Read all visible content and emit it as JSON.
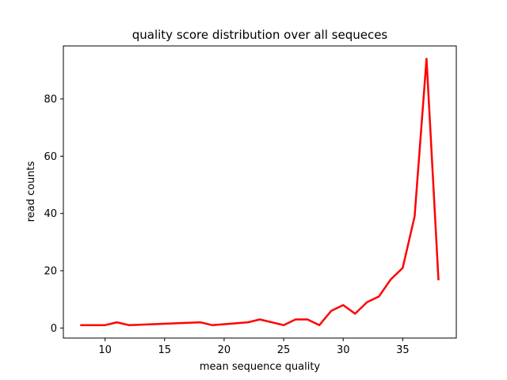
{
  "chart_data": {
    "type": "line",
    "title": "quality score distribution over all sequeces",
    "xlabel": "mean sequence quality",
    "ylabel": "read counts",
    "xlim": [
      6.5,
      39.5
    ],
    "ylim": [
      -3.5,
      98.5
    ],
    "xticks": [
      10,
      15,
      20,
      25,
      30,
      35
    ],
    "yticks": [
      0,
      20,
      40,
      60,
      80
    ],
    "grid": false,
    "series": [
      {
        "color": "#ff0000",
        "x": [
          8,
          10,
          11,
          12,
          18,
          19,
          22,
          23,
          25,
          26,
          27,
          28,
          29,
          30,
          31,
          32,
          33,
          34,
          35,
          36,
          37,
          38
        ],
        "y": [
          1,
          1,
          2,
          1,
          2,
          1,
          2,
          3,
          1,
          3,
          3,
          1,
          6,
          8,
          5,
          9,
          11,
          17,
          21,
          39,
          94,
          17
        ]
      }
    ]
  }
}
